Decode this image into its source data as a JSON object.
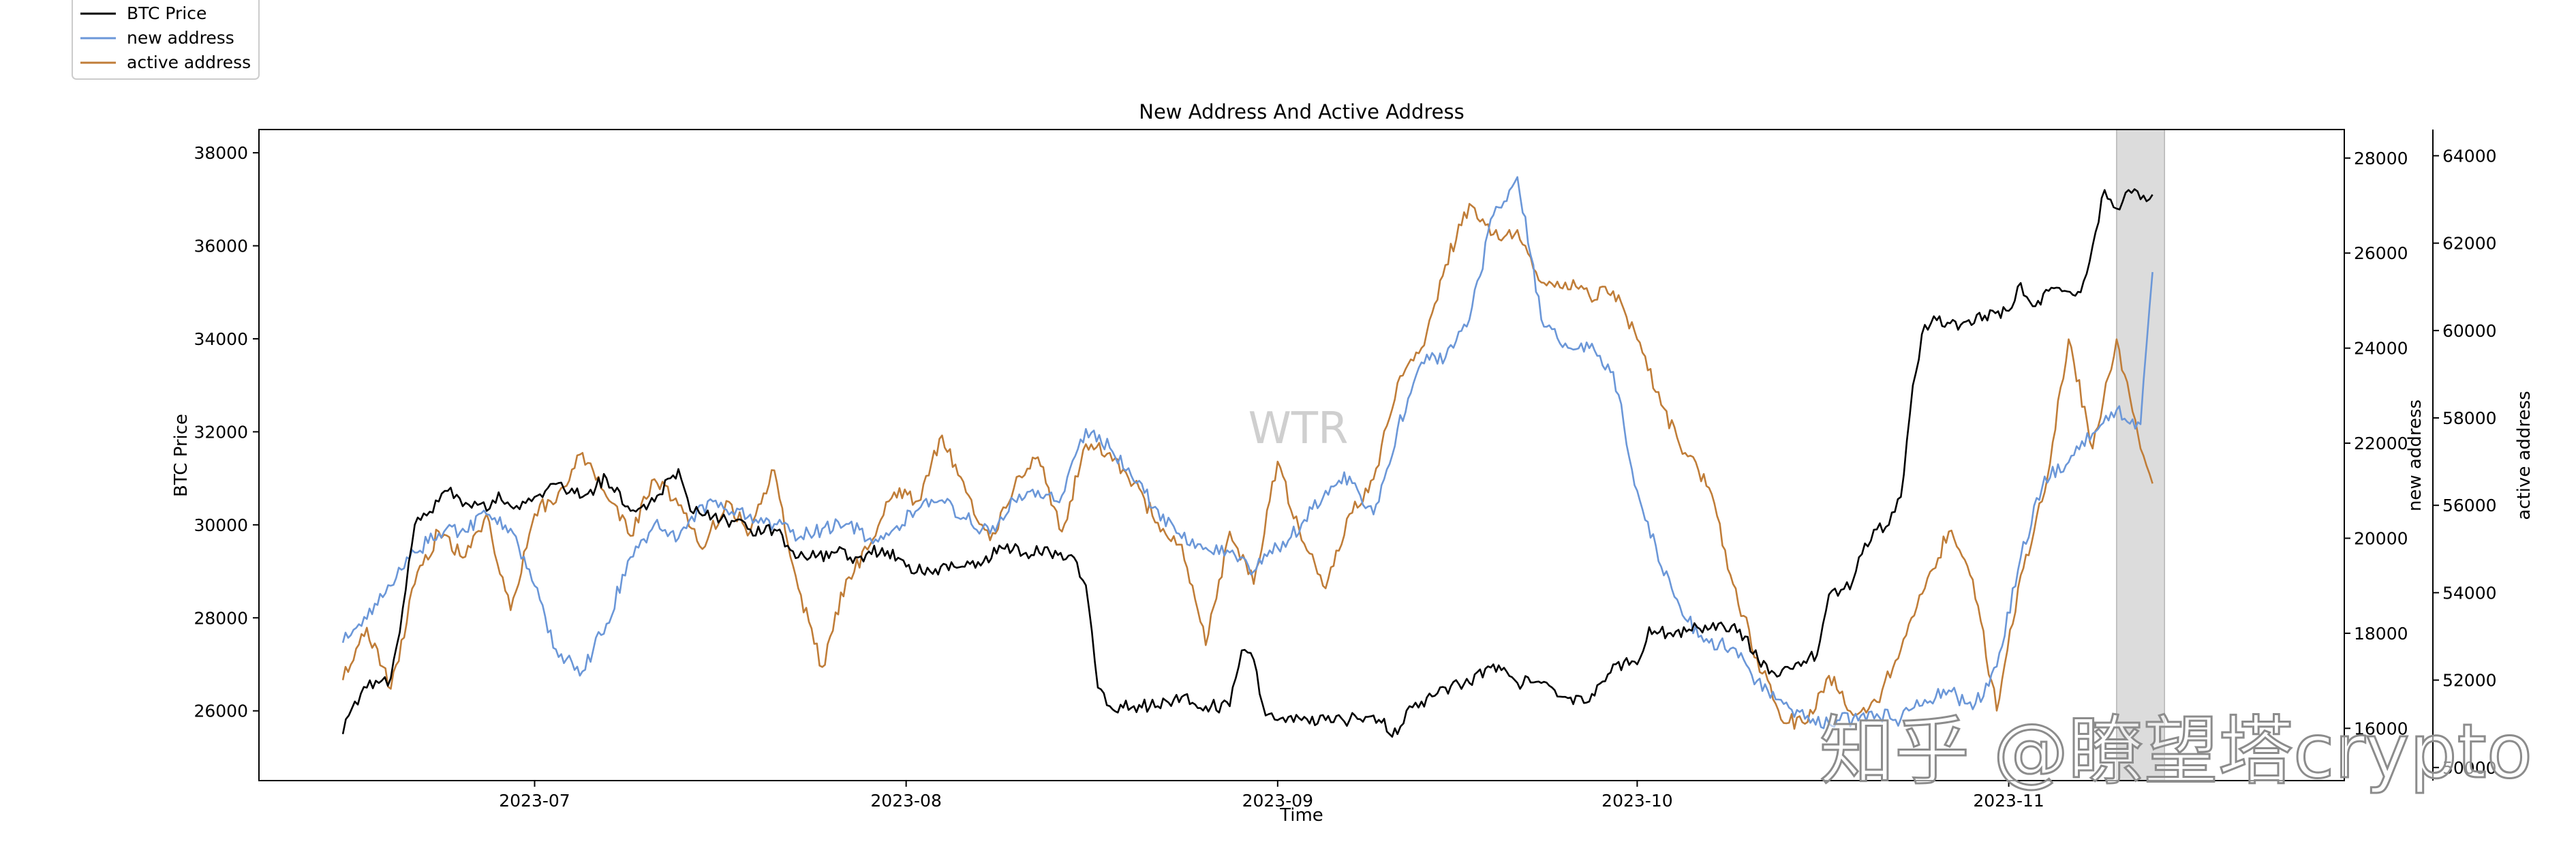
{
  "chart_data": {
    "type": "line",
    "title": "New Address And Active Address",
    "xlabel": "Time",
    "x_range": [
      "2023-06-08",
      "2023-11-29"
    ],
    "x_ticks": [
      "2023-07",
      "2023-08",
      "2023-09",
      "2023-10",
      "2023-11"
    ],
    "x_tick_dates": [
      "2023-07-01",
      "2023-08-01",
      "2023-09-01",
      "2023-10-01",
      "2023-11-01"
    ],
    "grid": false,
    "legend_position": "above-top-left",
    "shaded_region": {
      "start": "2023-11-10",
      "end": "2023-11-14",
      "color": "#dcdcdc"
    },
    "axes": {
      "left": {
        "label": "BTC Price",
        "ylim": [
          24500,
          38500
        ],
        "ticks": [
          26000,
          28000,
          30000,
          32000,
          34000,
          36000,
          38000
        ]
      },
      "right1": {
        "label": "new address",
        "ylim": [
          14900,
          28600
        ],
        "ticks": [
          16000,
          18000,
          20000,
          22000,
          24000,
          26000,
          28000
        ],
        "tick_labels": [
          "16000",
          "18000",
          "20000",
          "22000",
          "24000",
          "26000",
          "28000"
        ]
      },
      "right2": {
        "label": "active address",
        "ylim": [
          49700,
          64600
        ],
        "ticks": [
          50000,
          52000,
          54000,
          56000,
          58000,
          60000,
          62000,
          64000
        ],
        "tick_labels": [
          "50000",
          "52000",
          "54000",
          "56000",
          "58000",
          "60000",
          "62000",
          "64000"
        ]
      }
    },
    "series": [
      {
        "name": "BTC Price",
        "axis": "left",
        "color": "#000000",
        "x": [
          "2023-06-15",
          "2023-06-16",
          "2023-06-17",
          "2023-06-18",
          "2023-06-19",
          "2023-06-20",
          "2023-06-21",
          "2023-06-22",
          "2023-06-23",
          "2023-06-24",
          "2023-06-25",
          "2023-06-26",
          "2023-06-27",
          "2023-06-28",
          "2023-06-29",
          "2023-06-30",
          "2023-07-01",
          "2023-07-03",
          "2023-07-05",
          "2023-07-07",
          "2023-07-09",
          "2023-07-11",
          "2023-07-13",
          "2023-07-14",
          "2023-07-15",
          "2023-07-17",
          "2023-07-19",
          "2023-07-21",
          "2023-07-23",
          "2023-07-24",
          "2023-07-26",
          "2023-07-28",
          "2023-07-30",
          "2023-08-01",
          "2023-08-03",
          "2023-08-05",
          "2023-08-07",
          "2023-08-09",
          "2023-08-11",
          "2023-08-13",
          "2023-08-15",
          "2023-08-16",
          "2023-08-17",
          "2023-08-18",
          "2023-08-20",
          "2023-08-22",
          "2023-08-24",
          "2023-08-26",
          "2023-08-28",
          "2023-08-29",
          "2023-08-30",
          "2023-08-31",
          "2023-09-01",
          "2023-09-03",
          "2023-09-05",
          "2023-09-07",
          "2023-09-09",
          "2023-09-11",
          "2023-09-12",
          "2023-09-13",
          "2023-09-15",
          "2023-09-17",
          "2023-09-19",
          "2023-09-21",
          "2023-09-23",
          "2023-09-25",
          "2023-09-27",
          "2023-09-29",
          "2023-10-01",
          "2023-10-02",
          "2023-10-04",
          "2023-10-06",
          "2023-10-08",
          "2023-10-10",
          "2023-10-12",
          "2023-10-14",
          "2023-10-16",
          "2023-10-17",
          "2023-10-18",
          "2023-10-19",
          "2023-10-20",
          "2023-10-21",
          "2023-10-22",
          "2023-10-23",
          "2023-10-24",
          "2023-10-25",
          "2023-10-26",
          "2023-10-28",
          "2023-10-30",
          "2023-11-01",
          "2023-11-02",
          "2023-11-03",
          "2023-11-05",
          "2023-11-07",
          "2023-11-08",
          "2023-11-09",
          "2023-11-10",
          "2023-11-11",
          "2023-11-12",
          "2023-11-13"
        ],
        "y": [
          25500,
          26200,
          26500,
          26600,
          26700,
          28200,
          30000,
          30200,
          30500,
          30800,
          30400,
          30500,
          30300,
          30700,
          30400,
          30500,
          30600,
          30900,
          30600,
          31000,
          30300,
          30500,
          31200,
          30300,
          30200,
          30100,
          29900,
          29900,
          29300,
          29300,
          29400,
          29300,
          29500,
          29100,
          29000,
          29100,
          29200,
          29500,
          29400,
          29400,
          29300,
          28700,
          26500,
          26100,
          26100,
          26100,
          26300,
          26100,
          26100,
          27300,
          27100,
          25900,
          25800,
          25800,
          25800,
          25800,
          25900,
          25500,
          26100,
          26200,
          26500,
          26600,
          27000,
          26600,
          26600,
          26300,
          26200,
          27000,
          27000,
          27800,
          27600,
          27800,
          27900,
          27600,
          26800,
          26900,
          27200,
          28500,
          28600,
          28800,
          29600,
          29900,
          30000,
          30600,
          33000,
          34300,
          34400,
          34300,
          34500,
          34600,
          35200,
          34700,
          35100,
          35000,
          36000,
          37200,
          36800,
          37200,
          37000,
          37100
        ]
      },
      {
        "name": "new address",
        "axis": "right1",
        "color": "#6b97d8",
        "x": [
          "2023-06-15",
          "2023-06-17",
          "2023-06-19",
          "2023-06-21",
          "2023-06-23",
          "2023-06-25",
          "2023-06-27",
          "2023-06-29",
          "2023-07-01",
          "2023-07-03",
          "2023-07-05",
          "2023-07-07",
          "2023-07-09",
          "2023-07-11",
          "2023-07-13",
          "2023-07-15",
          "2023-07-17",
          "2023-07-19",
          "2023-07-21",
          "2023-07-23",
          "2023-07-25",
          "2023-07-27",
          "2023-07-29",
          "2023-07-31",
          "2023-08-02",
          "2023-08-04",
          "2023-08-06",
          "2023-08-08",
          "2023-08-10",
          "2023-08-12",
          "2023-08-14",
          "2023-08-16",
          "2023-08-18",
          "2023-08-20",
          "2023-08-22",
          "2023-08-24",
          "2023-08-26",
          "2023-08-28",
          "2023-08-30",
          "2023-09-01",
          "2023-09-03",
          "2023-09-05",
          "2023-09-07",
          "2023-09-09",
          "2023-09-11",
          "2023-09-13",
          "2023-09-15",
          "2023-09-17",
          "2023-09-19",
          "2023-09-21",
          "2023-09-23",
          "2023-09-25",
          "2023-09-27",
          "2023-09-29",
          "2023-10-01",
          "2023-10-03",
          "2023-10-05",
          "2023-10-07",
          "2023-10-09",
          "2023-10-11",
          "2023-10-13",
          "2023-10-15",
          "2023-10-17",
          "2023-10-19",
          "2023-10-21",
          "2023-10-23",
          "2023-10-25",
          "2023-10-27",
          "2023-10-29",
          "2023-10-31",
          "2023-11-02",
          "2023-11-04",
          "2023-11-06",
          "2023-11-08",
          "2023-11-10",
          "2023-11-12",
          "2023-11-13"
        ],
        "y": [
          17800,
          18300,
          19000,
          19700,
          20100,
          20200,
          20500,
          20200,
          19000,
          17500,
          17200,
          18200,
          19600,
          20300,
          20000,
          20700,
          20600,
          20500,
          20300,
          20000,
          20200,
          20300,
          20000,
          20200,
          20600,
          20800,
          20400,
          20100,
          20800,
          21000,
          20900,
          22300,
          21900,
          21200,
          20600,
          20000,
          19800,
          19700,
          19300,
          19800,
          20300,
          21000,
          21300,
          20500,
          22300,
          23700,
          23800,
          24600,
          26800,
          27600,
          24600,
          24100,
          24000,
          23500,
          21000,
          19400,
          18300,
          17800,
          17700,
          17000,
          16600,
          16200,
          16100,
          16200,
          16300,
          16200,
          16600,
          16800,
          16400,
          17300,
          19600,
          21300,
          21600,
          22200,
          22700,
          22400,
          25600
        ]
      },
      {
        "name": "active address",
        "axis": "right2",
        "color": "#c07d38",
        "x": [
          "2023-06-15",
          "2023-06-17",
          "2023-06-19",
          "2023-06-21",
          "2023-06-23",
          "2023-06-25",
          "2023-06-27",
          "2023-06-29",
          "2023-07-01",
          "2023-07-03",
          "2023-07-05",
          "2023-07-07",
          "2023-07-09",
          "2023-07-11",
          "2023-07-13",
          "2023-07-15",
          "2023-07-17",
          "2023-07-19",
          "2023-07-21",
          "2023-07-23",
          "2023-07-25",
          "2023-07-27",
          "2023-07-29",
          "2023-07-31",
          "2023-08-02",
          "2023-08-04",
          "2023-08-06",
          "2023-08-08",
          "2023-08-10",
          "2023-08-12",
          "2023-08-14",
          "2023-08-16",
          "2023-08-18",
          "2023-08-20",
          "2023-08-22",
          "2023-08-24",
          "2023-08-26",
          "2023-08-28",
          "2023-08-30",
          "2023-09-01",
          "2023-09-03",
          "2023-09-05",
          "2023-09-07",
          "2023-09-09",
          "2023-09-11",
          "2023-09-13",
          "2023-09-15",
          "2023-09-17",
          "2023-09-19",
          "2023-09-21",
          "2023-09-23",
          "2023-09-25",
          "2023-09-27",
          "2023-09-29",
          "2023-10-01",
          "2023-10-03",
          "2023-10-05",
          "2023-10-07",
          "2023-10-09",
          "2023-10-11",
          "2023-10-13",
          "2023-10-15",
          "2023-10-17",
          "2023-10-19",
          "2023-10-21",
          "2023-10-23",
          "2023-10-25",
          "2023-10-27",
          "2023-10-29",
          "2023-10-31",
          "2023-11-02",
          "2023-11-04",
          "2023-11-06",
          "2023-11-08",
          "2023-11-10",
          "2023-11-12",
          "2023-11-13"
        ],
        "y": [
          52000,
          53200,
          51800,
          54200,
          55400,
          54800,
          55800,
          53600,
          55800,
          56300,
          57200,
          56200,
          55300,
          56600,
          56000,
          55000,
          56100,
          55400,
          56800,
          54100,
          52300,
          54300,
          55100,
          56300,
          56100,
          57600,
          56300,
          55200,
          56400,
          57100,
          55400,
          57400,
          57200,
          56500,
          55600,
          55100,
          52800,
          55400,
          54200,
          57000,
          55200,
          54100,
          55800,
          56600,
          58800,
          59600,
          61500,
          62900,
          62200,
          62300,
          61100,
          61100,
          60800,
          60900,
          59800,
          58300,
          57200,
          56400,
          54200,
          52500,
          51100,
          51000,
          52100,
          51200,
          51500,
          52700,
          54100,
          55400,
          54300,
          51300,
          54400,
          56300,
          59800,
          57300,
          59800,
          57300,
          56500
        ]
      }
    ]
  },
  "watermarks": {
    "center": "WTR",
    "corner": "知乎 @瞭望塔crypto"
  }
}
